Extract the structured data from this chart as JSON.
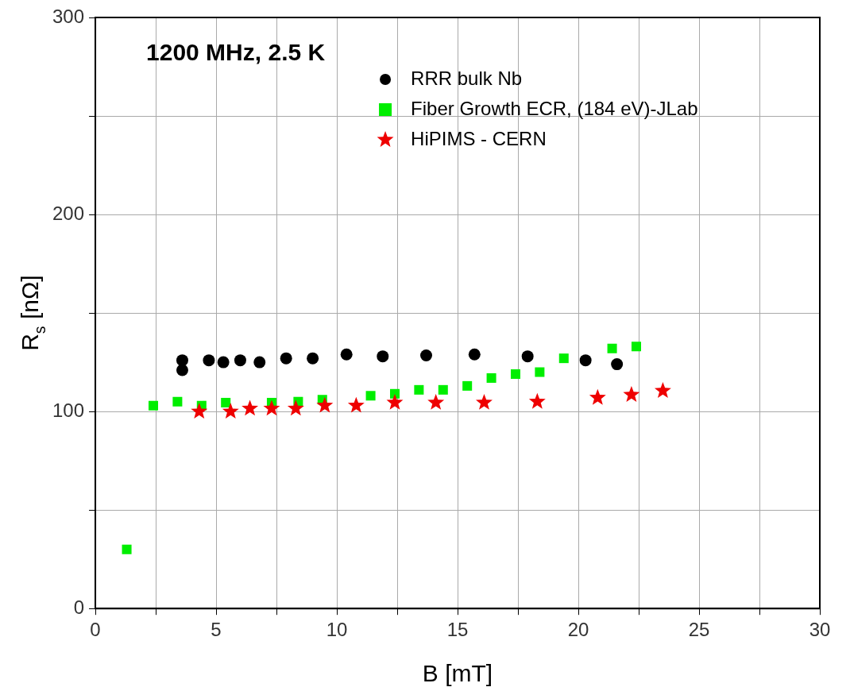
{
  "chart_data": {
    "type": "scatter",
    "title": "1200 MHz, 2.5 K",
    "xlabel": "B [mT]",
    "ylabel": "R$_{s}$ [nΩ]",
    "xlim": [
      0,
      30
    ],
    "ylim": [
      0,
      300
    ],
    "xticks": [
      0,
      {
        "value": 2.5,
        "label": null
      },
      5,
      {
        "value": 7.5,
        "label": null
      },
      10,
      {
        "value": 12.5,
        "label": null
      },
      15,
      {
        "value": 17.5,
        "label": null
      },
      20,
      {
        "value": 22.5,
        "label": null
      },
      25,
      {
        "value": 27.5,
        "label": null
      },
      30
    ],
    "yticks": [
      0,
      {
        "value": 50,
        "label": null
      },
      100,
      {
        "value": 150,
        "label": null
      },
      200,
      {
        "value": 250,
        "label": null
      },
      300
    ],
    "grid": true,
    "legend": "top right",
    "series": [
      {
        "name": "RRR bulk Nb",
        "color": "#000000",
        "marker": "circle",
        "x": [
          3.6,
          3.6,
          4.7,
          5.3,
          6.0,
          6.8,
          7.9,
          9.0,
          10.4,
          11.9,
          13.7,
          15.7,
          17.9,
          20.3,
          21.6
        ],
        "values": [
          126,
          121,
          126,
          125,
          126,
          125,
          127,
          127,
          129,
          128,
          128.5,
          129,
          128,
          126,
          124
        ]
      },
      {
        "name": "Fiber Growth ECR, (184 eV)-JLab",
        "color": "#00ee00",
        "marker": "square",
        "x": [
          1.3,
          2.4,
          3.4,
          4.4,
          5.4,
          7.3,
          8.4,
          9.4,
          11.4,
          12.4,
          13.4,
          14.4,
          15.4,
          16.4,
          17.4,
          18.4,
          19.4,
          21.4,
          22.4
        ],
        "values": [
          30,
          103,
          105,
          103,
          104.5,
          104.5,
          105,
          106,
          108,
          109,
          111,
          111,
          113,
          117,
          119,
          120,
          127,
          132,
          133
        ]
      },
      {
        "name": "HiPIMS - CERN",
        "color": "#ee0000",
        "marker": "star",
        "x": [
          4.3,
          5.6,
          6.4,
          7.3,
          8.3,
          9.5,
          10.8,
          12.4,
          14.1,
          16.1,
          18.3,
          20.8,
          22.2,
          23.5
        ],
        "values": [
          100,
          100,
          101.5,
          101.5,
          101.5,
          103,
          103,
          104.5,
          104.5,
          104.5,
          105,
          107,
          108.5,
          110.5
        ]
      }
    ]
  }
}
